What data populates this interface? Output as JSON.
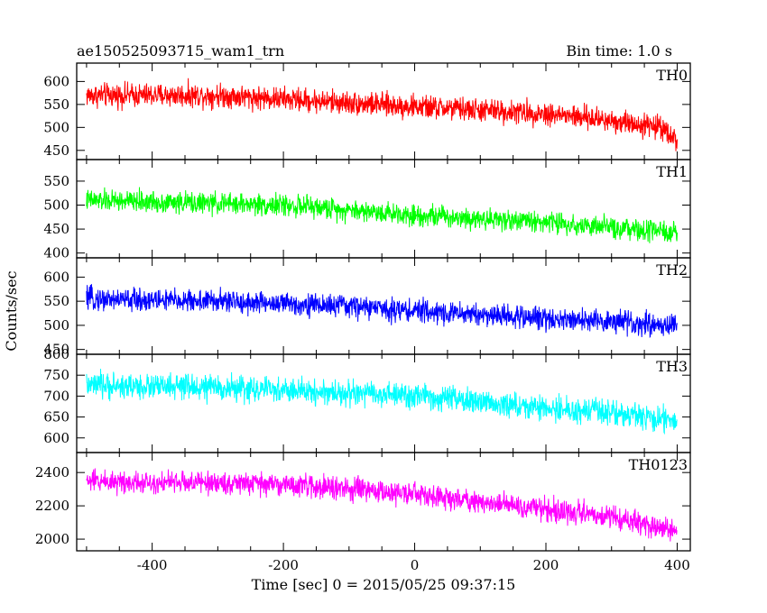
{
  "chart_data": {
    "type": "line",
    "title": "ae150525093715_wam1_trn",
    "subtitle": "Bin time: 1.0 s",
    "xlabel": "Time [sec] 0 = 2015/05/25 09:37:15",
    "ylabel": "Counts/sec",
    "xlim": [
      -515,
      420
    ],
    "x_ticks": [
      -400,
      -200,
      0,
      200,
      400
    ],
    "x_range": [
      -500,
      400
    ],
    "bin_time_s": 1.0,
    "grid": false,
    "legend": "none",
    "series": [
      {
        "name": "TH0",
        "color": "#ff0000",
        "ylim": [
          430,
          640
        ],
        "yticks": [
          450,
          500,
          550,
          600
        ],
        "trend": [
          [
            -500,
            570
          ],
          [
            -300,
            570
          ],
          [
            0,
            545
          ],
          [
            200,
            530
          ],
          [
            300,
            515
          ],
          [
            380,
            500
          ],
          [
            400,
            470
          ]
        ],
        "noise_amplitude": 38
      },
      {
        "name": "TH1",
        "color": "#00ff00",
        "ylim": [
          390,
          595
        ],
        "yticks": [
          400,
          450,
          500,
          550
        ],
        "trend": [
          [
            -500,
            510
          ],
          [
            -200,
            500
          ],
          [
            0,
            480
          ],
          [
            200,
            465
          ],
          [
            300,
            452
          ],
          [
            400,
            440
          ]
        ],
        "noise_amplitude": 33
      },
      {
        "name": "TH2",
        "color": "#0000ff",
        "ylim": [
          440,
          640
        ],
        "yticks": [
          450,
          500,
          550,
          600
        ],
        "trend": [
          [
            -500,
            555
          ],
          [
            -300,
            550
          ],
          [
            -100,
            540
          ],
          [
            0,
            530
          ],
          [
            200,
            515
          ],
          [
            400,
            500
          ]
        ],
        "noise_amplitude": 35
      },
      {
        "name": "TH3",
        "color": "#00ffff",
        "ylim": [
          565,
          800
        ],
        "yticks": [
          600,
          650,
          700,
          750,
          800
        ],
        "trend": [
          [
            -500,
            725
          ],
          [
            -300,
            720
          ],
          [
            0,
            700
          ],
          [
            200,
            670
          ],
          [
            300,
            660
          ],
          [
            400,
            640
          ]
        ],
        "noise_amplitude": 45
      },
      {
        "name": "TH0123",
        "color": "#ff00ff",
        "ylim": [
          1930,
          2520
        ],
        "yticks": [
          2000,
          2200,
          2400
        ],
        "trend": [
          [
            -500,
            2350
          ],
          [
            -200,
            2330
          ],
          [
            0,
            2270
          ],
          [
            200,
            2180
          ],
          [
            300,
            2130
          ],
          [
            400,
            2050
          ]
        ],
        "noise_amplitude": 100
      }
    ]
  }
}
